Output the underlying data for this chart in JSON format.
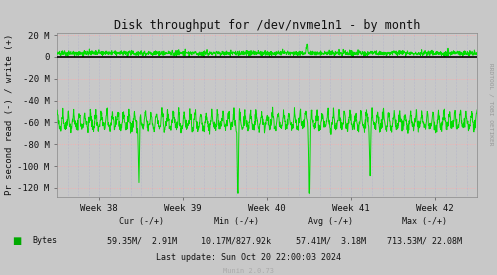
{
  "title": "Disk throughput for /dev/nvme1n1 - by month",
  "ylabel": "Pr second read (-) / write (+)",
  "xlabel_ticks": [
    "Week 38",
    "Week 39",
    "Week 40",
    "Week 41",
    "Week 42"
  ],
  "ylim": [
    -128000000,
    22000000
  ],
  "yticks": [
    -120000000,
    -100000000,
    -80000000,
    -60000000,
    -40000000,
    -20000000,
    0,
    20000000
  ],
  "ytick_labels": [
    "-120 M",
    "-100 M",
    "-80 M",
    "-60 M",
    "-40 M",
    "-20 M",
    "0",
    "20 M"
  ],
  "bg_color": "#c8c8c8",
  "plot_bg_color": "#c8c8c8",
  "grid_color_h": "#ffaaaa",
  "grid_color_v": "#aaaacc",
  "line_color": "#00dd00",
  "zero_line_color": "#000000",
  "legend_color": "#00aa00",
  "cur_neg": "59.35M",
  "cur_pos": " 2.91M",
  "min_neg": "10.17M",
  "min_pos": "827.92k",
  "avg_neg": "57.41M",
  "avg_pos": " 3.18M",
  "max_neg": "713.53M",
  "max_pos": "22.08M",
  "last_update": "Last update: Sun Oct 20 22:00:03 2024",
  "munin_version": "Munin 2.0.73",
  "rrdtool_label": "RRDTOOL / TOBI OETIKER",
  "num_points": 1500,
  "seed": 42
}
